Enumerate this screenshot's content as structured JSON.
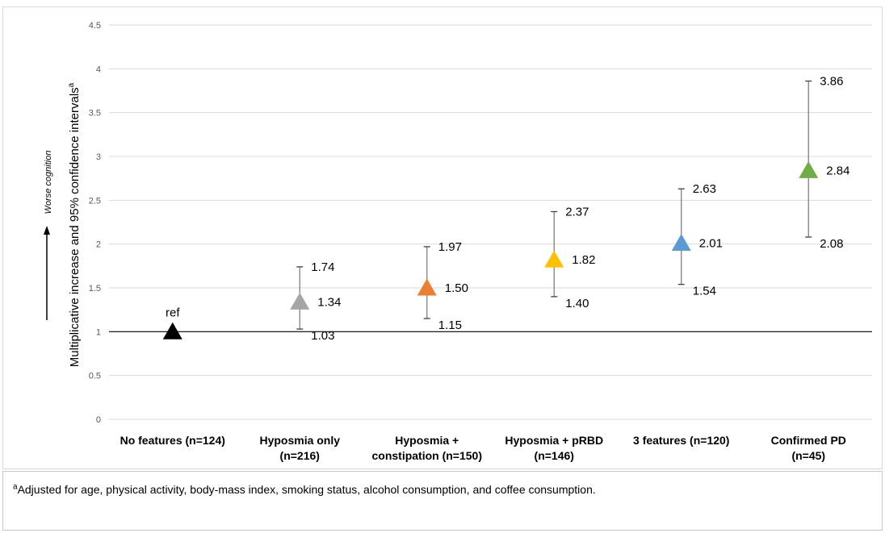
{
  "chart_data": {
    "type": "scatter",
    "ylabel": "Multiplicative increase and 95% confidence intervals",
    "ylabel_superscript": "a",
    "arrow_label": "Worse cognition",
    "ylim": [
      0,
      4.5
    ],
    "yticks": [
      "0",
      "0.5",
      "1",
      "1.5",
      "2",
      "2.5",
      "3",
      "3.5",
      "4",
      "4.5"
    ],
    "reference_line": 1,
    "grid": true,
    "categories": [
      [
        "No features (n=124)"
      ],
      [
        "Hyposmia only",
        "(n=216)"
      ],
      [
        "Hyposmia +",
        "constipation (n=150)"
      ],
      [
        "Hyposmia + pRBD",
        "(n=146)"
      ],
      [
        "3 features (n=120)"
      ],
      [
        "Confirmed PD",
        "(n=45)"
      ]
    ],
    "points": [
      {
        "value": 1.0,
        "label": "ref",
        "color": "#000000"
      },
      {
        "value": 1.34,
        "lower": 1.03,
        "upper": 1.74,
        "label": "1.34",
        "lower_label": "1.03",
        "upper_label": "1.74",
        "color": "#a5a5a5"
      },
      {
        "value": 1.5,
        "lower": 1.15,
        "upper": 1.97,
        "label": "1.50",
        "lower_label": "1.15",
        "upper_label": "1.97",
        "color": "#ed7d31"
      },
      {
        "value": 1.82,
        "lower": 1.4,
        "upper": 2.37,
        "label": "1.82",
        "lower_label": "1.40",
        "upper_label": "2.37",
        "color": "#ffc000"
      },
      {
        "value": 2.01,
        "lower": 1.54,
        "upper": 2.63,
        "label": "2.01",
        "lower_label": "1.54",
        "upper_label": "2.63",
        "color": "#5b9bd5"
      },
      {
        "value": 2.84,
        "lower": 2.08,
        "upper": 3.86,
        "label": "2.84",
        "lower_label": "2.08",
        "upper_label": "3.86",
        "color": "#70ad47"
      }
    ]
  },
  "footnote": {
    "superscript": "a",
    "text": "Adjusted for age, physical activity, body-mass index, smoking status, alcohol consumption, and coffee consumption."
  }
}
